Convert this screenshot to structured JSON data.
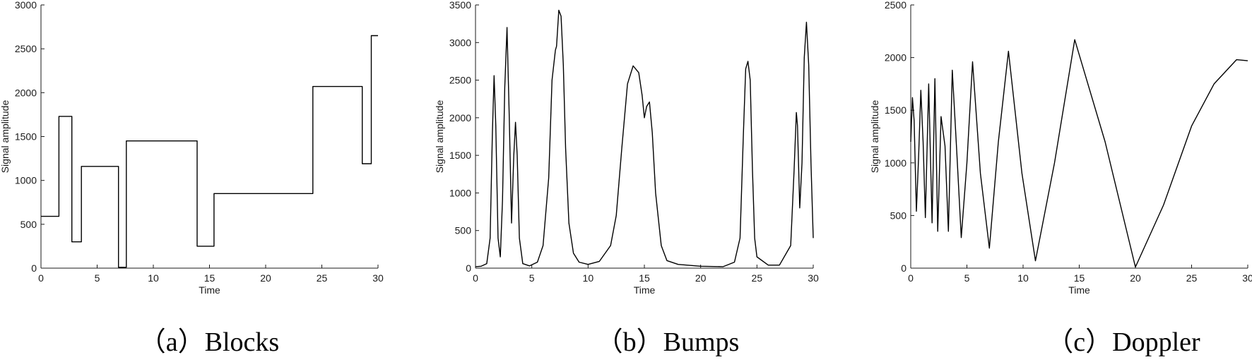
{
  "chart_data": [
    {
      "type": "line",
      "caption": "（a）Blocks",
      "xlabel": "Time",
      "ylabel": "Signal amplitude",
      "xlim": [
        0,
        30
      ],
      "ylim": [
        0,
        3000
      ],
      "x_ticks": [
        "0",
        "5",
        "10",
        "15",
        "20",
        "25",
        "30"
      ],
      "y_ticks": [
        "0",
        "500",
        "1000",
        "1500",
        "2000",
        "2500",
        "3000"
      ],
      "series": [
        {
          "x": [
            0,
            1.6,
            1.6,
            2.75,
            2.75,
            3.6,
            3.6,
            6.9,
            6.9,
            7.6,
            7.6,
            13.9,
            13.9,
            15.4,
            15.4,
            24.2,
            24.2,
            28.6,
            28.6,
            29.4,
            29.4,
            30
          ],
          "values": [
            590,
            590,
            1730,
            1730,
            300,
            300,
            1160,
            1160,
            10,
            10,
            1450,
            1450,
            250,
            250,
            850,
            850,
            2070,
            2070,
            1190,
            1190,
            2650,
            2650
          ]
        }
      ]
    },
    {
      "type": "line",
      "caption": "（b）Bumps",
      "xlabel": "Time",
      "ylabel": "Signal amplitude",
      "xlim": [
        0,
        30
      ],
      "ylim": [
        0,
        3500
      ],
      "x_ticks": [
        "0",
        "5",
        "10",
        "15",
        "20",
        "25",
        "30"
      ],
      "y_ticks": [
        "0",
        "500",
        "1000",
        "1500",
        "2000",
        "2500",
        "3000",
        "3500"
      ],
      "series": [
        {
          "x": [
            0,
            0.5,
            1.0,
            1.3,
            1.5,
            1.65,
            1.8,
            2.0,
            2.2,
            2.4,
            2.6,
            2.8,
            3.0,
            3.2,
            3.4,
            3.55,
            3.7,
            3.9,
            4.2,
            4.8,
            5.5,
            6.0,
            6.5,
            6.8,
            7.1,
            7.2,
            7.4,
            7.6,
            7.8,
            8.0,
            8.3,
            8.7,
            9.2,
            10.0,
            11.0,
            12.0,
            12.5,
            13.0,
            13.5,
            14.0,
            14.5,
            14.8,
            15.0,
            15.2,
            15.45,
            15.7,
            16.0,
            16.5,
            17.0,
            18.0,
            20.0,
            22.0,
            23.0,
            23.5,
            23.8,
            24.0,
            24.2,
            24.4,
            24.6,
            24.8,
            25.0,
            26.0,
            27.0,
            28.0,
            28.3,
            28.5,
            28.6,
            28.8,
            29.0,
            29.2,
            29.4,
            29.6,
            29.8,
            30.0
          ],
          "values": [
            20,
            25,
            60,
            400,
            1800,
            2560,
            1900,
            400,
            150,
            900,
            2400,
            3200,
            2000,
            600,
            1500,
            1940,
            1500,
            400,
            60,
            30,
            80,
            300,
            1200,
            2500,
            2900,
            2950,
            3430,
            3350,
            2700,
            1600,
            600,
            200,
            80,
            50,
            90,
            300,
            700,
            1600,
            2450,
            2690,
            2600,
            2300,
            2000,
            2150,
            2210,
            1800,
            1000,
            300,
            100,
            50,
            25,
            20,
            80,
            400,
            1800,
            2650,
            2750,
            2500,
            1300,
            400,
            150,
            40,
            40,
            300,
            1300,
            2070,
            1900,
            800,
            1400,
            2800,
            3270,
            2700,
            1400,
            400
          ]
        }
      ]
    },
    {
      "type": "line",
      "caption": "（c）Doppler",
      "xlabel": "Time",
      "ylabel": "Signal amplitude",
      "xlim": [
        0,
        30
      ],
      "ylim": [
        0,
        2500
      ],
      "x_ticks": [
        "0",
        "5",
        "10",
        "15",
        "20",
        "25",
        "30"
      ],
      "y_ticks": [
        "0",
        "500",
        "1000",
        "1500",
        "2000",
        "2500"
      ],
      "series": [
        {
          "x": [
            0,
            0.15,
            0.3,
            0.5,
            0.7,
            0.9,
            1.1,
            1.3,
            1.6,
            1.9,
            2.15,
            2.4,
            2.7,
            3.05,
            3.35,
            3.7,
            4.1,
            4.5,
            5.0,
            5.5,
            6.2,
            7.0,
            7.8,
            8.7,
            9.9,
            11.1,
            12.8,
            14.6,
            17.3,
            20.0,
            22.5,
            25.0,
            27.0,
            29.0,
            30.0
          ],
          "values": [
            1200,
            1620,
            1400,
            540,
            1050,
            1690,
            1200,
            480,
            1750,
            430,
            1800,
            350,
            1440,
            1160,
            350,
            1880,
            1100,
            290,
            1000,
            1960,
            900,
            190,
            1200,
            2060,
            900,
            70,
            1000,
            2170,
            1200,
            10,
            600,
            1350,
            1750,
            1980,
            1970
          ]
        }
      ]
    }
  ]
}
